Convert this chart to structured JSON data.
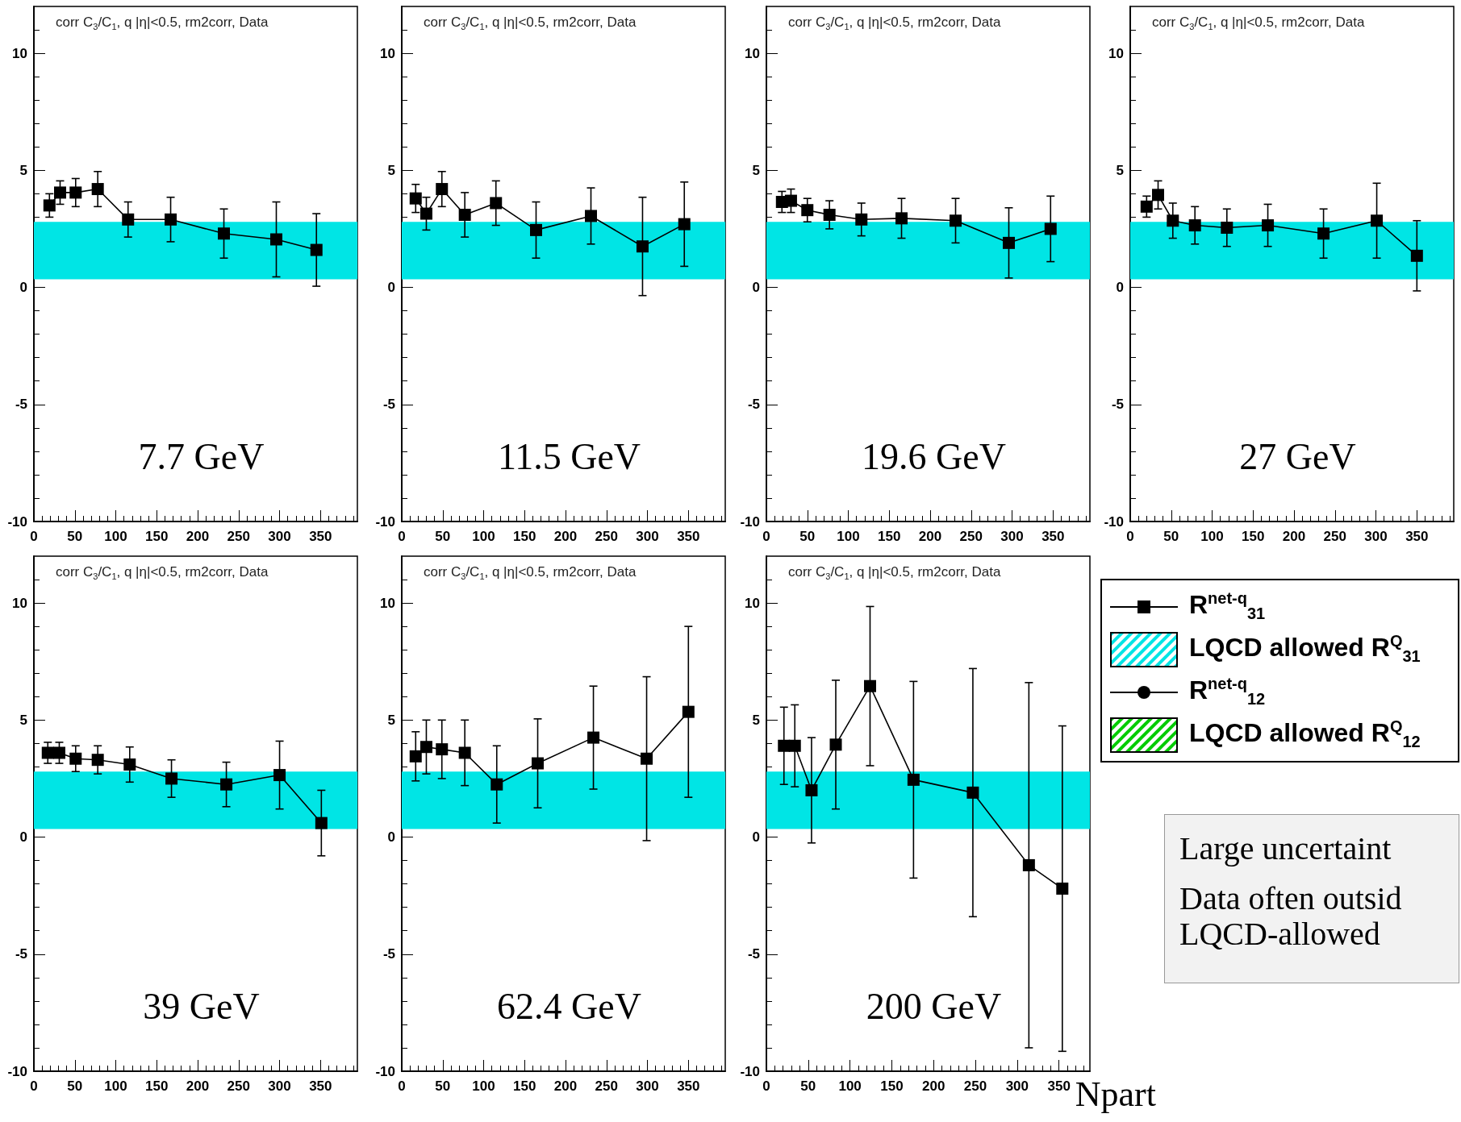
{
  "chart_data": [
    {
      "type": "line",
      "title": "corr C$_{3}$/C$_{1}$, q |η|<0.5, rm2corr, Data",
      "subtitle": "7.7 GeV",
      "marker": "square",
      "xlim": [
        0,
        395
      ],
      "ylim": [
        -10,
        12
      ],
      "xticks": [
        0,
        {
          "value": 10,
          "label": null
        },
        {
          "value": 20,
          "label": null
        },
        {
          "value": 30,
          "label": null
        },
        {
          "value": 40,
          "label": null
        },
        50,
        {
          "value": 60,
          "label": null
        },
        {
          "value": 70,
          "label": null
        },
        {
          "value": 80,
          "label": null
        },
        {
          "value": 90,
          "label": null
        },
        100,
        {
          "value": 110,
          "label": null
        },
        {
          "value": 120,
          "label": null
        },
        {
          "value": 130,
          "label": null
        },
        {
          "value": 140,
          "label": null
        },
        150,
        {
          "value": 160,
          "label": null
        },
        {
          "value": 170,
          "label": null
        },
        {
          "value": 180,
          "label": null
        },
        {
          "value": 190,
          "label": null
        },
        200,
        {
          "value": 210,
          "label": null
        },
        {
          "value": 220,
          "label": null
        },
        {
          "value": 230,
          "label": null
        },
        {
          "value": 240,
          "label": null
        },
        250,
        {
          "value": 260,
          "label": null
        },
        {
          "value": 270,
          "label": null
        },
        {
          "value": 280,
          "label": null
        },
        {
          "value": 290,
          "label": null
        },
        300,
        {
          "value": 310,
          "label": null
        },
        {
          "value": 320,
          "label": null
        },
        {
          "value": 330,
          "label": null
        },
        {
          "value": 340,
          "label": null
        },
        350,
        {
          "value": 360,
          "label": null
        },
        {
          "value": 370,
          "label": null
        },
        {
          "value": 380,
          "label": null
        },
        {
          "value": 390,
          "label": null
        }
      ],
      "yticks": [
        -10,
        {
          "value": -9,
          "label": null
        },
        {
          "value": -8,
          "label": null
        },
        {
          "value": -7,
          "label": null
        },
        {
          "value": -6,
          "label": null
        },
        -5,
        {
          "value": -4,
          "label": null
        },
        {
          "value": -3,
          "label": null
        },
        {
          "value": -2,
          "label": null
        },
        {
          "value": -1,
          "label": null
        },
        0,
        {
          "value": 1,
          "label": null
        },
        {
          "value": 2,
          "label": null
        },
        {
          "value": 3,
          "label": null
        },
        {
          "value": 4,
          "label": null
        },
        5,
        {
          "value": 6,
          "label": null
        },
        {
          "value": 7,
          "label": null
        },
        {
          "value": 8,
          "label": null
        },
        {
          "value": 9,
          "label": null
        },
        10,
        {
          "value": 11,
          "label": null
        }
      ],
      "series": [
        {
          "color": "#000000",
          "x": [
            19,
            32,
            51,
            78,
            115,
            167,
            232,
            296,
            345
          ],
          "values": [
            3.5,
            4.05,
            4.05,
            4.2,
            2.9,
            2.9,
            2.3,
            2.05,
            1.6
          ],
          "errors": [
            0.5,
            0.5,
            0.6,
            0.75,
            0.75,
            0.95,
            1.05,
            1.6,
            1.55
          ]
        }
      ],
      "bands": [
        {
          "axis": "y",
          "from": 0.35,
          "to": 2.8,
          "color": "#00e5e5"
        }
      ]
    },
    {
      "type": "line",
      "title": "corr C$_{3}$/C$_{1}$, q |η|<0.5, rm2corr, Data",
      "subtitle": "11.5 GeV",
      "marker": "square",
      "xlim": [
        0,
        395
      ],
      "ylim": [
        -10,
        12
      ],
      "xticks": [
        0,
        {
          "value": 10,
          "label": null
        },
        {
          "value": 20,
          "label": null
        },
        {
          "value": 30,
          "label": null
        },
        {
          "value": 40,
          "label": null
        },
        50,
        {
          "value": 60,
          "label": null
        },
        {
          "value": 70,
          "label": null
        },
        {
          "value": 80,
          "label": null
        },
        {
          "value": 90,
          "label": null
        },
        100,
        {
          "value": 110,
          "label": null
        },
        {
          "value": 120,
          "label": null
        },
        {
          "value": 130,
          "label": null
        },
        {
          "value": 140,
          "label": null
        },
        150,
        {
          "value": 160,
          "label": null
        },
        {
          "value": 170,
          "label": null
        },
        {
          "value": 180,
          "label": null
        },
        {
          "value": 190,
          "label": null
        },
        200,
        {
          "value": 210,
          "label": null
        },
        {
          "value": 220,
          "label": null
        },
        {
          "value": 230,
          "label": null
        },
        {
          "value": 240,
          "label": null
        },
        250,
        {
          "value": 260,
          "label": null
        },
        {
          "value": 270,
          "label": null
        },
        {
          "value": 280,
          "label": null
        },
        {
          "value": 290,
          "label": null
        },
        300,
        {
          "value": 310,
          "label": null
        },
        {
          "value": 320,
          "label": null
        },
        {
          "value": 330,
          "label": null
        },
        {
          "value": 340,
          "label": null
        },
        350,
        {
          "value": 360,
          "label": null
        },
        {
          "value": 370,
          "label": null
        },
        {
          "value": 380,
          "label": null
        },
        {
          "value": 390,
          "label": null
        }
      ],
      "yticks": [
        -10,
        {
          "value": -9,
          "label": null
        },
        {
          "value": -8,
          "label": null
        },
        {
          "value": -7,
          "label": null
        },
        {
          "value": -6,
          "label": null
        },
        -5,
        {
          "value": -4,
          "label": null
        },
        {
          "value": -3,
          "label": null
        },
        {
          "value": -2,
          "label": null
        },
        {
          "value": -1,
          "label": null
        },
        0,
        {
          "value": 1,
          "label": null
        },
        {
          "value": 2,
          "label": null
        },
        {
          "value": 3,
          "label": null
        },
        {
          "value": 4,
          "label": null
        },
        5,
        {
          "value": 6,
          "label": null
        },
        {
          "value": 7,
          "label": null
        },
        {
          "value": 8,
          "label": null
        },
        {
          "value": 9,
          "label": null
        },
        10,
        {
          "value": 11,
          "label": null
        }
      ],
      "series": [
        {
          "color": "#000000",
          "x": [
            17,
            30,
            49,
            77,
            115,
            164,
            231,
            294,
            345
          ],
          "values": [
            3.8,
            3.15,
            4.2,
            3.1,
            3.6,
            2.45,
            3.05,
            1.75,
            2.7
          ],
          "errors": [
            0.6,
            0.7,
            0.75,
            0.95,
            0.95,
            1.2,
            1.2,
            2.1,
            1.8
          ]
        }
      ],
      "bands": [
        {
          "axis": "y",
          "from": 0.35,
          "to": 2.8,
          "color": "#00e5e5"
        }
      ]
    },
    {
      "type": "line",
      "title": "corr C$_{3}$/C$_{1}$, q |η|<0.5, rm2corr, Data",
      "subtitle": "19.6 GeV",
      "marker": "square",
      "xlim": [
        0,
        395
      ],
      "ylim": [
        -10,
        12
      ],
      "xticks": [
        0,
        {
          "value": 10,
          "label": null
        },
        {
          "value": 20,
          "label": null
        },
        {
          "value": 30,
          "label": null
        },
        {
          "value": 40,
          "label": null
        },
        50,
        {
          "value": 60,
          "label": null
        },
        {
          "value": 70,
          "label": null
        },
        {
          "value": 80,
          "label": null
        },
        {
          "value": 90,
          "label": null
        },
        100,
        {
          "value": 110,
          "label": null
        },
        {
          "value": 120,
          "label": null
        },
        {
          "value": 130,
          "label": null
        },
        {
          "value": 140,
          "label": null
        },
        150,
        {
          "value": 160,
          "label": null
        },
        {
          "value": 170,
          "label": null
        },
        {
          "value": 180,
          "label": null
        },
        {
          "value": 190,
          "label": null
        },
        200,
        {
          "value": 210,
          "label": null
        },
        {
          "value": 220,
          "label": null
        },
        {
          "value": 230,
          "label": null
        },
        {
          "value": 240,
          "label": null
        },
        250,
        {
          "value": 260,
          "label": null
        },
        {
          "value": 270,
          "label": null
        },
        {
          "value": 280,
          "label": null
        },
        {
          "value": 290,
          "label": null
        },
        300,
        {
          "value": 310,
          "label": null
        },
        {
          "value": 320,
          "label": null
        },
        {
          "value": 330,
          "label": null
        },
        {
          "value": 340,
          "label": null
        },
        350,
        {
          "value": 360,
          "label": null
        },
        {
          "value": 370,
          "label": null
        },
        {
          "value": 380,
          "label": null
        },
        {
          "value": 390,
          "label": null
        }
      ],
      "yticks": [
        -10,
        {
          "value": -9,
          "label": null
        },
        {
          "value": -8,
          "label": null
        },
        {
          "value": -7,
          "label": null
        },
        {
          "value": -6,
          "label": null
        },
        -5,
        {
          "value": -4,
          "label": null
        },
        {
          "value": -3,
          "label": null
        },
        {
          "value": -2,
          "label": null
        },
        {
          "value": -1,
          "label": null
        },
        0,
        {
          "value": 1,
          "label": null
        },
        {
          "value": 2,
          "label": null
        },
        {
          "value": 3,
          "label": null
        },
        {
          "value": 4,
          "label": null
        },
        5,
        {
          "value": 6,
          "label": null
        },
        {
          "value": 7,
          "label": null
        },
        {
          "value": 8,
          "label": null
        },
        {
          "value": 9,
          "label": null
        },
        10,
        {
          "value": 11,
          "label": null
        }
      ],
      "series": [
        {
          "color": "#000000",
          "x": [
            19,
            30,
            50,
            77,
            116,
            165,
            231,
            296,
            347
          ],
          "values": [
            3.65,
            3.7,
            3.3,
            3.1,
            2.9,
            2.95,
            2.85,
            1.9,
            2.5
          ],
          "errors": [
            0.45,
            0.5,
            0.5,
            0.6,
            0.7,
            0.85,
            0.95,
            1.5,
            1.4
          ]
        }
      ],
      "bands": [
        {
          "axis": "y",
          "from": 0.35,
          "to": 2.8,
          "color": "#00e5e5"
        }
      ]
    },
    {
      "type": "line",
      "title": "corr C$_{3}$/C$_{1}$, q |η|<0.5, rm2corr, Data",
      "subtitle": "27 GeV",
      "marker": "square",
      "xlim": [
        0,
        395
      ],
      "ylim": [
        -10,
        12
      ],
      "xticks": [
        0,
        {
          "value": 10,
          "label": null
        },
        {
          "value": 20,
          "label": null
        },
        {
          "value": 30,
          "label": null
        },
        {
          "value": 40,
          "label": null
        },
        50,
        {
          "value": 60,
          "label": null
        },
        {
          "value": 70,
          "label": null
        },
        {
          "value": 80,
          "label": null
        },
        {
          "value": 90,
          "label": null
        },
        100,
        {
          "value": 110,
          "label": null
        },
        {
          "value": 120,
          "label": null
        },
        {
          "value": 130,
          "label": null
        },
        {
          "value": 140,
          "label": null
        },
        150,
        {
          "value": 160,
          "label": null
        },
        {
          "value": 170,
          "label": null
        },
        {
          "value": 180,
          "label": null
        },
        {
          "value": 190,
          "label": null
        },
        200,
        {
          "value": 210,
          "label": null
        },
        {
          "value": 220,
          "label": null
        },
        {
          "value": 230,
          "label": null
        },
        {
          "value": 240,
          "label": null
        },
        250,
        {
          "value": 260,
          "label": null
        },
        {
          "value": 270,
          "label": null
        },
        {
          "value": 280,
          "label": null
        },
        {
          "value": 290,
          "label": null
        },
        300,
        {
          "value": 310,
          "label": null
        },
        {
          "value": 320,
          "label": null
        },
        {
          "value": 330,
          "label": null
        },
        {
          "value": 340,
          "label": null
        },
        350,
        {
          "value": 360,
          "label": null
        },
        {
          "value": 370,
          "label": null
        },
        {
          "value": 380,
          "label": null
        },
        {
          "value": 390,
          "label": null
        }
      ],
      "yticks": [
        -10,
        {
          "value": -9,
          "label": null
        },
        {
          "value": -8,
          "label": null
        },
        {
          "value": -7,
          "label": null
        },
        {
          "value": -6,
          "label": null
        },
        -5,
        {
          "value": -4,
          "label": null
        },
        {
          "value": -3,
          "label": null
        },
        {
          "value": -2,
          "label": null
        },
        {
          "value": -1,
          "label": null
        },
        0,
        {
          "value": 1,
          "label": null
        },
        {
          "value": 2,
          "label": null
        },
        {
          "value": 3,
          "label": null
        },
        {
          "value": 4,
          "label": null
        },
        5,
        {
          "value": 6,
          "label": null
        },
        {
          "value": 7,
          "label": null
        },
        {
          "value": 8,
          "label": null
        },
        {
          "value": 9,
          "label": null
        },
        10,
        {
          "value": 11,
          "label": null
        }
      ],
      "series": [
        {
          "color": "#000000",
          "x": [
            20,
            34,
            52,
            79,
            118,
            168,
            236,
            301,
            350
          ],
          "values": [
            3.45,
            3.95,
            2.85,
            2.65,
            2.55,
            2.65,
            2.3,
            2.85,
            1.35
          ],
          "errors": [
            0.45,
            0.6,
            0.75,
            0.8,
            0.8,
            0.9,
            1.05,
            1.6,
            1.5
          ]
        }
      ],
      "bands": [
        {
          "axis": "y",
          "from": 0.35,
          "to": 2.8,
          "color": "#00e5e5"
        }
      ]
    },
    {
      "type": "line",
      "title": "corr C$_{3}$/C$_{1}$, q |η|<0.5, rm2corr, Data",
      "subtitle": "39 GeV",
      "marker": "square",
      "xlim": [
        0,
        395
      ],
      "ylim": [
        -10,
        12
      ],
      "xticks": [
        0,
        {
          "value": 10,
          "label": null
        },
        {
          "value": 20,
          "label": null
        },
        {
          "value": 30,
          "label": null
        },
        {
          "value": 40,
          "label": null
        },
        50,
        {
          "value": 60,
          "label": null
        },
        {
          "value": 70,
          "label": null
        },
        {
          "value": 80,
          "label": null
        },
        {
          "value": 90,
          "label": null
        },
        100,
        {
          "value": 110,
          "label": null
        },
        {
          "value": 120,
          "label": null
        },
        {
          "value": 130,
          "label": null
        },
        {
          "value": 140,
          "label": null
        },
        150,
        {
          "value": 160,
          "label": null
        },
        {
          "value": 170,
          "label": null
        },
        {
          "value": 180,
          "label": null
        },
        {
          "value": 190,
          "label": null
        },
        200,
        {
          "value": 210,
          "label": null
        },
        {
          "value": 220,
          "label": null
        },
        {
          "value": 230,
          "label": null
        },
        {
          "value": 240,
          "label": null
        },
        250,
        {
          "value": 260,
          "label": null
        },
        {
          "value": 270,
          "label": null
        },
        {
          "value": 280,
          "label": null
        },
        {
          "value": 290,
          "label": null
        },
        300,
        {
          "value": 310,
          "label": null
        },
        {
          "value": 320,
          "label": null
        },
        {
          "value": 330,
          "label": null
        },
        {
          "value": 340,
          "label": null
        },
        350,
        {
          "value": 360,
          "label": null
        },
        {
          "value": 370,
          "label": null
        },
        {
          "value": 380,
          "label": null
        },
        {
          "value": 390,
          "label": null
        }
      ],
      "yticks": [
        -10,
        {
          "value": -9,
          "label": null
        },
        {
          "value": -8,
          "label": null
        },
        {
          "value": -7,
          "label": null
        },
        {
          "value": -6,
          "label": null
        },
        -5,
        {
          "value": -4,
          "label": null
        },
        {
          "value": -3,
          "label": null
        },
        {
          "value": -2,
          "label": null
        },
        {
          "value": -1,
          "label": null
        },
        0,
        {
          "value": 1,
          "label": null
        },
        {
          "value": 2,
          "label": null
        },
        {
          "value": 3,
          "label": null
        },
        {
          "value": 4,
          "label": null
        },
        5,
        {
          "value": 6,
          "label": null
        },
        {
          "value": 7,
          "label": null
        },
        {
          "value": 8,
          "label": null
        },
        {
          "value": 9,
          "label": null
        },
        10,
        {
          "value": 11,
          "label": null
        }
      ],
      "series": [
        {
          "color": "#000000",
          "x": [
            17,
            31,
            51,
            78,
            117,
            168,
            235,
            300,
            351
          ],
          "values": [
            3.6,
            3.6,
            3.35,
            3.3,
            3.1,
            2.5,
            2.25,
            2.65,
            0.6
          ],
          "errors": [
            0.45,
            0.45,
            0.55,
            0.6,
            0.75,
            0.8,
            0.95,
            1.45,
            1.4
          ]
        }
      ],
      "bands": [
        {
          "axis": "y",
          "from": 0.35,
          "to": 2.8,
          "color": "#00e5e5"
        }
      ]
    },
    {
      "type": "line",
      "title": "corr C$_{3}$/C$_{1}$, q |η|<0.5, rm2corr, Data",
      "subtitle": "62.4 GeV",
      "marker": "square",
      "xlim": [
        0,
        395
      ],
      "ylim": [
        -10,
        12
      ],
      "xticks": [
        0,
        {
          "value": 10,
          "label": null
        },
        {
          "value": 20,
          "label": null
        },
        {
          "value": 30,
          "label": null
        },
        {
          "value": 40,
          "label": null
        },
        50,
        {
          "value": 60,
          "label": null
        },
        {
          "value": 70,
          "label": null
        },
        {
          "value": 80,
          "label": null
        },
        {
          "value": 90,
          "label": null
        },
        100,
        {
          "value": 110,
          "label": null
        },
        {
          "value": 120,
          "label": null
        },
        {
          "value": 130,
          "label": null
        },
        {
          "value": 140,
          "label": null
        },
        150,
        {
          "value": 160,
          "label": null
        },
        {
          "value": 170,
          "label": null
        },
        {
          "value": 180,
          "label": null
        },
        {
          "value": 190,
          "label": null
        },
        200,
        {
          "value": 210,
          "label": null
        },
        {
          "value": 220,
          "label": null
        },
        {
          "value": 230,
          "label": null
        },
        {
          "value": 240,
          "label": null
        },
        250,
        {
          "value": 260,
          "label": null
        },
        {
          "value": 270,
          "label": null
        },
        {
          "value": 280,
          "label": null
        },
        {
          "value": 290,
          "label": null
        },
        300,
        {
          "value": 310,
          "label": null
        },
        {
          "value": 320,
          "label": null
        },
        {
          "value": 330,
          "label": null
        },
        {
          "value": 340,
          "label": null
        },
        350,
        {
          "value": 360,
          "label": null
        },
        {
          "value": 370,
          "label": null
        },
        {
          "value": 380,
          "label": null
        },
        {
          "value": 390,
          "label": null
        }
      ],
      "yticks": [
        -10,
        {
          "value": -9,
          "label": null
        },
        {
          "value": -8,
          "label": null
        },
        {
          "value": -7,
          "label": null
        },
        {
          "value": -6,
          "label": null
        },
        -5,
        {
          "value": -4,
          "label": null
        },
        {
          "value": -3,
          "label": null
        },
        {
          "value": -2,
          "label": null
        },
        {
          "value": -1,
          "label": null
        },
        0,
        {
          "value": 1,
          "label": null
        },
        {
          "value": 2,
          "label": null
        },
        {
          "value": 3,
          "label": null
        },
        {
          "value": 4,
          "label": null
        },
        5,
        {
          "value": 6,
          "label": null
        },
        {
          "value": 7,
          "label": null
        },
        {
          "value": 8,
          "label": null
        },
        {
          "value": 9,
          "label": null
        },
        10,
        {
          "value": 11,
          "label": null
        }
      ],
      "series": [
        {
          "color": "#000000",
          "x": [
            17,
            30,
            49,
            77,
            116,
            166,
            234,
            299,
            350
          ],
          "values": [
            3.45,
            3.85,
            3.75,
            3.6,
            2.25,
            3.15,
            4.25,
            3.35,
            5.35
          ],
          "errors": [
            1.05,
            1.15,
            1.25,
            1.4,
            1.65,
            1.9,
            2.2,
            3.5,
            3.65
          ]
        }
      ],
      "bands": [
        {
          "axis": "y",
          "from": 0.35,
          "to": 2.8,
          "color": "#00e5e5"
        }
      ]
    },
    {
      "type": "line",
      "title": "corr C$_{3}$/C$_{1}$, q |η|<0.5, rm2corr, Data",
      "subtitle": "200 GeV",
      "xlabel": "Npart",
      "marker": "square",
      "legend": "right",
      "xlim": [
        0,
        387
      ],
      "ylim": [
        -10,
        12
      ],
      "xticks": [
        0,
        {
          "value": 10,
          "label": null
        },
        {
          "value": 20,
          "label": null
        },
        {
          "value": 30,
          "label": null
        },
        {
          "value": 40,
          "label": null
        },
        50,
        {
          "value": 60,
          "label": null
        },
        {
          "value": 70,
          "label": null
        },
        {
          "value": 80,
          "label": null
        },
        {
          "value": 90,
          "label": null
        },
        100,
        {
          "value": 110,
          "label": null
        },
        {
          "value": 120,
          "label": null
        },
        {
          "value": 130,
          "label": null
        },
        {
          "value": 140,
          "label": null
        },
        150,
        {
          "value": 160,
          "label": null
        },
        {
          "value": 170,
          "label": null
        },
        {
          "value": 180,
          "label": null
        },
        {
          "value": 190,
          "label": null
        },
        200,
        {
          "value": 210,
          "label": null
        },
        {
          "value": 220,
          "label": null
        },
        {
          "value": 230,
          "label": null
        },
        {
          "value": 240,
          "label": null
        },
        250,
        {
          "value": 260,
          "label": null
        },
        {
          "value": 270,
          "label": null
        },
        {
          "value": 280,
          "label": null
        },
        {
          "value": 290,
          "label": null
        },
        300,
        {
          "value": 310,
          "label": null
        },
        {
          "value": 320,
          "label": null
        },
        {
          "value": 330,
          "label": null
        },
        {
          "value": 340,
          "label": null
        },
        350,
        {
          "value": 360,
          "label": null
        },
        {
          "value": 370,
          "label": null
        },
        {
          "value": 380,
          "label": null
        }
      ],
      "yticks": [
        -10,
        {
          "value": -9,
          "label": null
        },
        {
          "value": -8,
          "label": null
        },
        {
          "value": -7,
          "label": null
        },
        {
          "value": -6,
          "label": null
        },
        -5,
        {
          "value": -4,
          "label": null
        },
        {
          "value": -3,
          "label": null
        },
        {
          "value": -2,
          "label": null
        },
        {
          "value": -1,
          "label": null
        },
        0,
        {
          "value": 1,
          "label": null
        },
        {
          "value": 2,
          "label": null
        },
        {
          "value": 3,
          "label": null
        },
        {
          "value": 4,
          "label": null
        },
        5,
        {
          "value": 6,
          "label": null
        },
        {
          "value": 7,
          "label": null
        },
        {
          "value": 8,
          "label": null
        },
        {
          "value": 9,
          "label": null
        },
        10,
        {
          "value": 11,
          "label": null
        }
      ],
      "series": [
        {
          "name": "R$^{net-q}$$_{31}$",
          "color": "#000000",
          "x": [
            21,
            34,
            54,
            83,
            124,
            176,
            247,
            314,
            354
          ],
          "values": [
            3.9,
            3.9,
            2.0,
            3.95,
            6.45,
            2.45,
            1.9,
            -1.2,
            -2.2
          ],
          "errors": [
            1.65,
            1.75,
            2.25,
            2.75,
            3.4,
            4.2,
            5.3,
            7.8,
            6.95
          ]
        },
        {
          "name": "R$^{net-q}$$_{12}$",
          "color": "#000000",
          "marker": "circle"
        },
        {
          "name": "LQCD allowed R$^{Q}$$_{12}$",
          "type": "area",
          "color": "#00cc00"
        }
      ],
      "bands": [
        {
          "axis": "y",
          "from": 0.35,
          "to": 2.8,
          "color": "#00e5e5",
          "label": "LQCD allowed R$^{Q}$$_{31}$"
        }
      ]
    },
    {
      "type": "other",
      "annotations": [
        "Large uncertaint",
        "Data often outsid LQCD-allowed"
      ]
    }
  ]
}
